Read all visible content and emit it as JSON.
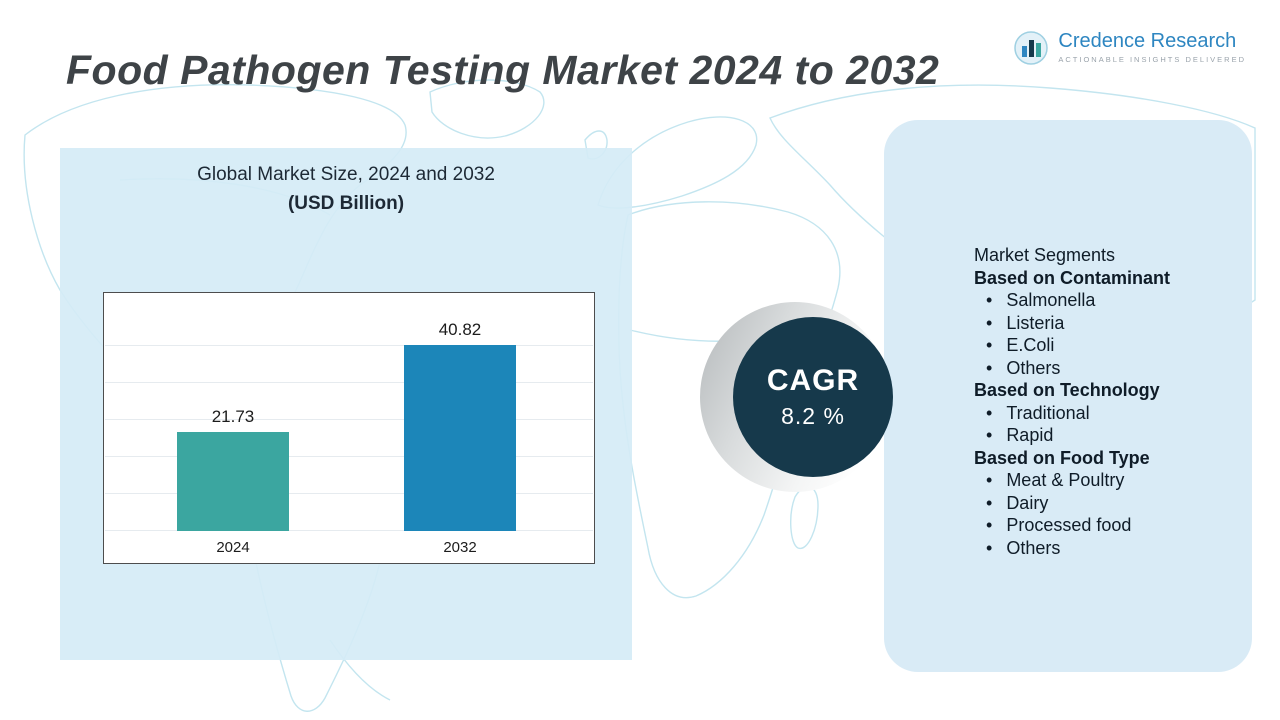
{
  "title": "Food Pathogen Testing Market 2024 to 2032",
  "brand": {
    "name": "Credence Research",
    "tagline": "Actionable Insights Delivered"
  },
  "chart_data": {
    "type": "bar",
    "title": "Global Market Size, 2024 and 2032",
    "subtitle": "(USD Billion)",
    "categories": [
      "2024",
      "2032"
    ],
    "values": [
      21.73,
      40.82
    ],
    "value_labels": [
      "21.73",
      "40.82"
    ],
    "bar_colors": [
      "#3ba6a0",
      "#1c86b9"
    ],
    "ylim": [
      0,
      45
    ],
    "grid": true,
    "legend_position": "none"
  },
  "cagr": {
    "label": "CAGR",
    "value": "8.2 %"
  },
  "segments": {
    "heading": "Market Segments",
    "groups": [
      {
        "label": "Based on Contaminant",
        "items": [
          "Salmonella",
          "Listeria",
          "E.Coli",
          "Others"
        ]
      },
      {
        "label": "Based on  Technology",
        "items": [
          "Traditional",
          "Rapid"
        ]
      },
      {
        "label": "Based on Food Type",
        "items": [
          "Meat & Poultry",
          "Dairy",
          "Processed food",
          "Others"
        ]
      }
    ]
  },
  "colors": {
    "accent_teal": "#3ba6a0",
    "accent_blue": "#1c86b9",
    "cagr_circle": "#16394b",
    "panel_bg": "#d9ebf6",
    "map_stroke": "#c3e5ef",
    "title_color": "#3e4347"
  }
}
